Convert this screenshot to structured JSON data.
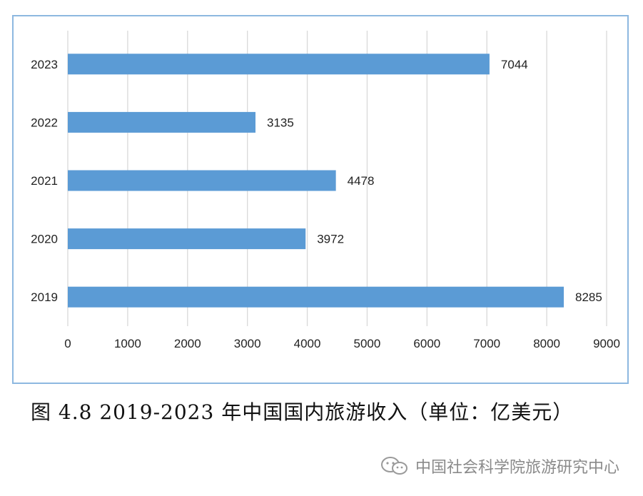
{
  "chart_data": {
    "type": "bar",
    "orientation": "horizontal",
    "categories": [
      "2023",
      "2022",
      "2021",
      "2020",
      "2019"
    ],
    "values": [
      7044,
      3135,
      4478,
      3972,
      8285
    ],
    "data_labels": [
      "7044",
      "3135",
      "4478",
      "3972",
      "8285"
    ],
    "xticks": [
      "0",
      "1000",
      "2000",
      "3000",
      "4000",
      "5000",
      "6000",
      "7000",
      "8000",
      "9000"
    ],
    "xlim": [
      0,
      9000
    ],
    "grid": true,
    "bar_color": "#5b9bd5",
    "title": "",
    "xlabel": "",
    "ylabel": ""
  },
  "caption": "图 4.8 2019-2023 年中国国内旅游收入（单位：亿美元）",
  "watermark": {
    "icon": "wechat-icon",
    "text": "中国社会科学院旅游研究中心"
  }
}
